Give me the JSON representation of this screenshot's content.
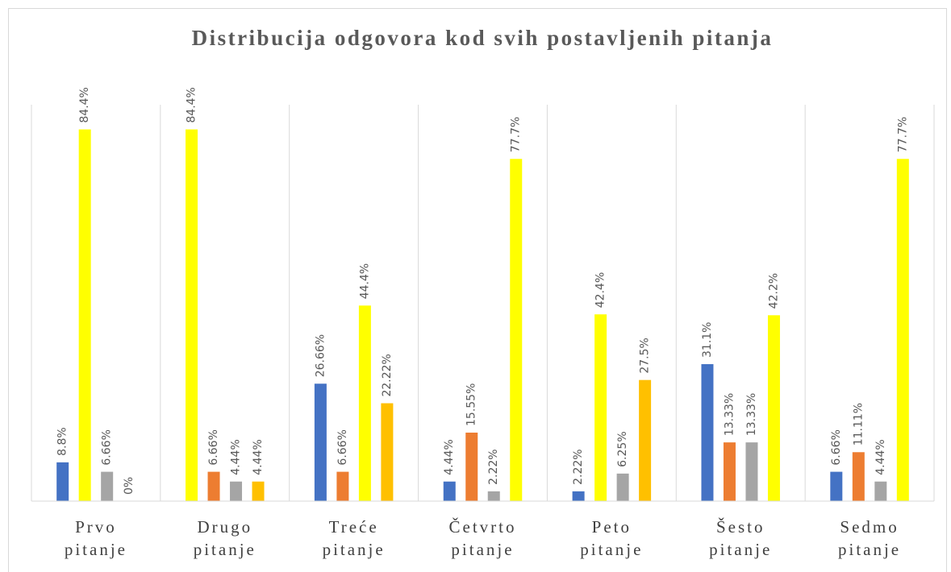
{
  "chart_data": {
    "type": "bar",
    "title": "Distribucija odgovora kod svih postavljenih pitanja",
    "categories": [
      "Prvo pitanje",
      "Drugo pitanje",
      "Treće pitanje",
      "Četvrto pitanje",
      "Peto pitanje",
      "Šesto pitanje",
      "Sedmo pitanje"
    ],
    "groups": [
      {
        "values": [
          8.8,
          84.4,
          6.66,
          0
        ],
        "value_labels": [
          "8.8%",
          "84.4%",
          "6.66%",
          "0%"
        ],
        "colors": [
          "#4472c4",
          "#ffff00",
          "#a5a5a5",
          "#ffc000"
        ]
      },
      {
        "values": [
          84.4,
          6.66,
          4.44,
          4.44
        ],
        "value_labels": [
          "84.4%",
          "6.66%",
          "4.44%",
          "4.44%"
        ],
        "colors": [
          "#ffff00",
          "#ed7d31",
          "#a5a5a5",
          "#ffc000"
        ]
      },
      {
        "values": [
          26.66,
          6.66,
          44.4,
          22.22
        ],
        "value_labels": [
          "26.66%",
          "6.66%",
          "44.4%",
          "22.22%"
        ],
        "colors": [
          "#4472c4",
          "#ed7d31",
          "#ffff00",
          "#ffc000"
        ]
      },
      {
        "values": [
          4.44,
          15.55,
          2.22,
          77.7
        ],
        "value_labels": [
          "4.44%",
          "15.55%",
          "2.22%",
          "77.7%"
        ],
        "colors": [
          "#4472c4",
          "#ed7d31",
          "#a5a5a5",
          "#ffff00"
        ]
      },
      {
        "values": [
          2.22,
          42.4,
          6.25,
          27.5
        ],
        "value_labels": [
          "2.22%",
          "42.4%",
          "6.25%",
          "27.5%"
        ],
        "colors": [
          "#4472c4",
          "#ffff00",
          "#a5a5a5",
          "#ffc000"
        ]
      },
      {
        "values": [
          31.1,
          13.33,
          13.33,
          42.2
        ],
        "value_labels": [
          "31.1%",
          "13.33%",
          "13.33%",
          "42.2%"
        ],
        "colors": [
          "#4472c4",
          "#ed7d31",
          "#a5a5a5",
          "#ffff00"
        ]
      },
      {
        "values": [
          6.66,
          11.11,
          4.44,
          77.7
        ],
        "value_labels": [
          "6.66%",
          "11.11%",
          "4.44%",
          "77.7%"
        ],
        "colors": [
          "#4472c4",
          "#ed7d31",
          "#a5a5a5",
          "#ffff00"
        ]
      }
    ],
    "ylim": [
      0,
      90
    ]
  }
}
